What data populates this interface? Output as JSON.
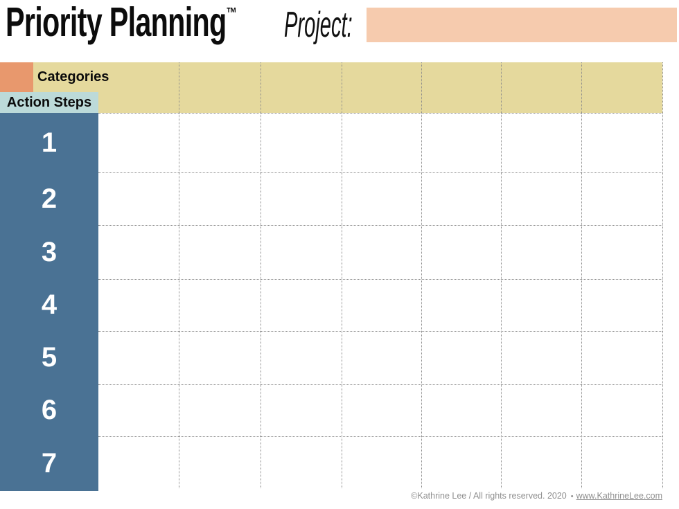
{
  "header": {
    "title": "Priority Planning",
    "trademark": "™",
    "project_label": "Project:",
    "project_value": "",
    "project_placeholder": ""
  },
  "table": {
    "categories_label": "Categories",
    "action_steps_label": "Action Steps",
    "action_steps": [
      "1",
      "2",
      "3",
      "4",
      "5",
      "6",
      "7"
    ],
    "category_columns": 7
  },
  "footer": {
    "copyright": "©Kathrine Lee / All rights reserved. 2020",
    "separator": "•",
    "link": "www.KathrineLee.com"
  },
  "colors": {
    "orange_square": "#e8986d",
    "project_box_peach": "#f6cbae",
    "header_tan": "#e5d99d",
    "action_steps_teal": "#bcdad9",
    "steps_column_blue": "#4a7294",
    "grid_line_gray": "#8a8a8a",
    "footer_gray": "#8f8f8f"
  }
}
